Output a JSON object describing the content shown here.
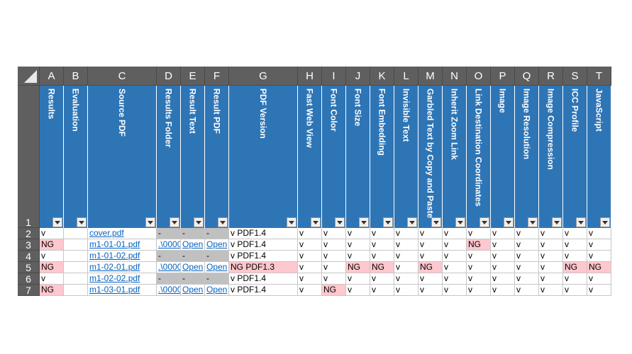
{
  "sheet": {
    "corner": "",
    "columns": [
      {
        "letter": "A",
        "header": "Results"
      },
      {
        "letter": "B",
        "header": "Evaluation"
      },
      {
        "letter": "C",
        "header": "Source PDF"
      },
      {
        "letter": "D",
        "header": "Results Folder"
      },
      {
        "letter": "E",
        "header": "Result Text"
      },
      {
        "letter": "F",
        "header": "Result PDF"
      },
      {
        "letter": "G",
        "header": "PDF Version"
      },
      {
        "letter": "H",
        "header": "Fast Web View"
      },
      {
        "letter": "I",
        "header": "Font Color"
      },
      {
        "letter": "J",
        "header": "Font Size"
      },
      {
        "letter": "K",
        "header": "Font Embedding"
      },
      {
        "letter": "L",
        "header": "Invisible Text"
      },
      {
        "letter": "M",
        "header": "Garbled Text by Copy and Paste"
      },
      {
        "letter": "N",
        "header": "Inherit Zoom Link"
      },
      {
        "letter": "O",
        "header": "Link Destination Coordinates"
      },
      {
        "letter": "P",
        "header": "Image"
      },
      {
        "letter": "Q",
        "header": "Image Resolution"
      },
      {
        "letter": "R",
        "header": "Image Compression"
      },
      {
        "letter": "S",
        "header": "ICC Profile"
      },
      {
        "letter": "T",
        "header": "JavaScript"
      }
    ],
    "row_numbers": [
      "1",
      "2",
      "3",
      "4",
      "5",
      "6",
      "7"
    ],
    "rows": [
      [
        "v",
        "",
        "cover.pdf",
        "-",
        "-",
        "-",
        "v PDF1.4",
        "v",
        "v",
        "v",
        "v",
        "v",
        "v",
        "v",
        "v",
        "v",
        "v",
        "v",
        "v",
        "v"
      ],
      [
        "NG",
        "",
        "m1-01-01.pdf",
        ".\\0000",
        "Open",
        "Open",
        "v PDF1.4",
        "v",
        "v",
        "v",
        "v",
        "v",
        "v",
        "v",
        "NG",
        "v",
        "v",
        "v",
        "v",
        "v"
      ],
      [
        "v",
        "",
        "m1-01-02.pdf",
        "-",
        "-",
        "-",
        "v PDF1.4",
        "v",
        "v",
        "v",
        "v",
        "v",
        "v",
        "v",
        "v",
        "v",
        "v",
        "v",
        "v",
        "v"
      ],
      [
        "NG",
        "",
        "m1-02-01.pdf",
        ".\\0000",
        "Open",
        "Open",
        "NG  PDF1.3",
        "v",
        "v",
        "NG",
        "NG",
        "v",
        "NG",
        "v",
        "v",
        "v",
        "v",
        "v",
        "NG",
        "NG"
      ],
      [
        "v",
        "",
        "m1-02-02.pdf",
        "-",
        "-",
        "-",
        "v PDF1.4",
        "v",
        "v",
        "v",
        "v",
        "v",
        "v",
        "v",
        "v",
        "v",
        "v",
        "v",
        "v",
        "v"
      ],
      [
        "NG",
        "",
        "m1-03-01.pdf",
        ".\\0000",
        "Open",
        "Open",
        "v PDF1.4",
        "v",
        "NG",
        "v",
        "v",
        "v",
        "v",
        "v",
        "v",
        "v",
        "v",
        "v",
        "v",
        "v"
      ]
    ],
    "colors": {
      "header_blue": "#2e75b6",
      "ng_fill": "#ffc7ce",
      "dash_fill": "#c0c0c0",
      "link": "#0563c1",
      "chrome": "#5f5f5f"
    }
  }
}
